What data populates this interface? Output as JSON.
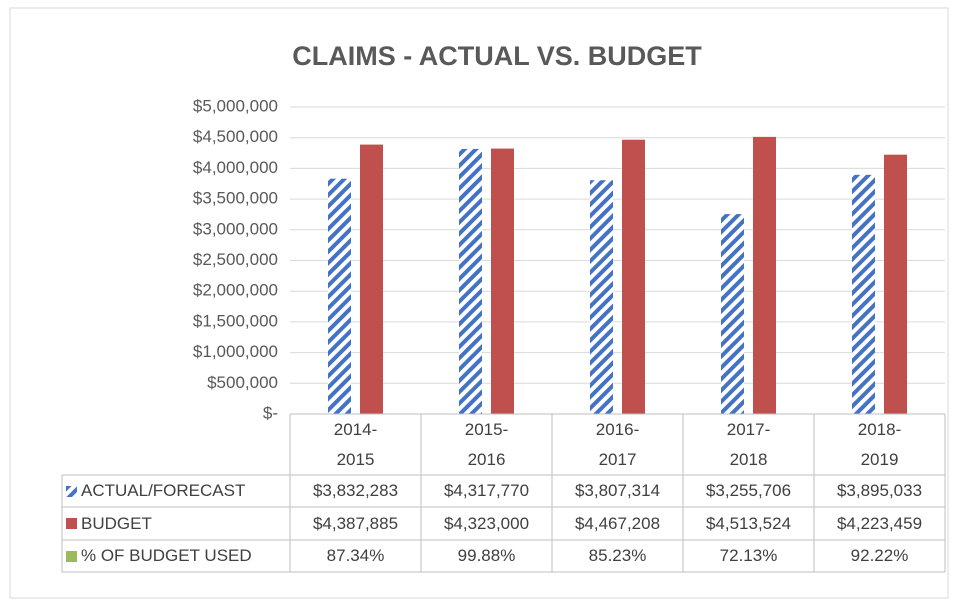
{
  "chart_data": {
    "type": "bar",
    "title": "CLAIMS - ACTUAL VS. BUDGET",
    "categories": [
      "2014-2015",
      "2015-2016",
      "2016-2017",
      "2017-2018",
      "2018-2019"
    ],
    "series": [
      {
        "name": "ACTUAL/FORECAST",
        "color": "#4472c4",
        "pattern": "hatch",
        "values": [
          3832283,
          4317770,
          3807314,
          3255706,
          3895033
        ],
        "value_labels": [
          "$3,832,283",
          "$4,317,770",
          "$3,807,314",
          "$3,255,706",
          "$3,895,033"
        ]
      },
      {
        "name": "BUDGET",
        "color": "#c0504d",
        "values": [
          4387885,
          4323000,
          4467208,
          4513524,
          4223459
        ],
        "value_labels": [
          "$4,387,885",
          "$4,323,000",
          "$4,467,208",
          "$4,513,524",
          "$4,223,459"
        ]
      },
      {
        "name": "% OF BUDGET USED",
        "color": "#9bbb59",
        "axis": "y2",
        "values": [
          87.34,
          99.88,
          85.23,
          72.13,
          92.22
        ],
        "value_labels": [
          "87.34%",
          "99.88%",
          "85.23%",
          "72.13%",
          "92.22%"
        ]
      }
    ],
    "ylim": [
      0,
      5000000
    ],
    "yticks": [
      {
        "value": 0,
        "label": "$-"
      },
      {
        "value": 500000,
        "label": "$500,000"
      },
      {
        "value": 1000000,
        "label": "$1,000,000"
      },
      {
        "value": 1500000,
        "label": "$1,500,000"
      },
      {
        "value": 2000000,
        "label": "$2,000,000"
      },
      {
        "value": 2500000,
        "label": "$2,500,000"
      },
      {
        "value": 3000000,
        "label": "$3,000,000"
      },
      {
        "value": 3500000,
        "label": "$3,500,000"
      },
      {
        "value": 4000000,
        "label": "$4,000,000"
      },
      {
        "value": 4500000,
        "label": "$4,500,000"
      },
      {
        "value": 5000000,
        "label": "$5,000,000"
      }
    ],
    "grid": true,
    "data_table": true
  }
}
